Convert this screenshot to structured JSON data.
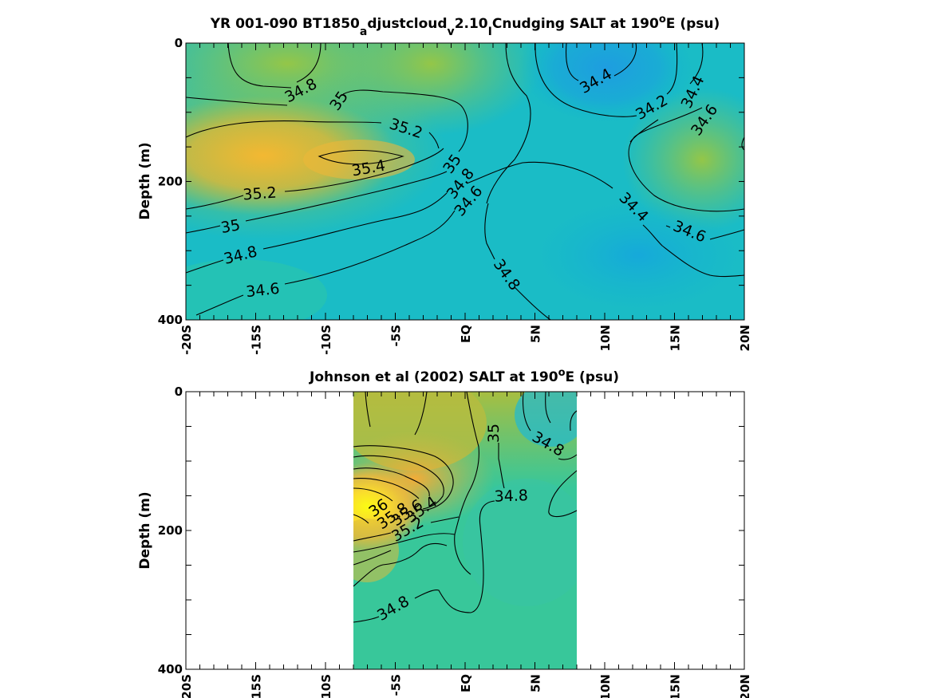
{
  "chart_data": [
    {
      "type": "heatmap",
      "subtype": "contour",
      "title": "YR 001-090 BT1850_adjustcloud_v2.10_ICnudging SALT at 190°E (psu)",
      "title_parts": {
        "main": "YR 001-090 BT1850",
        "sub1": "a",
        "mid1": "djustcloud",
        "sub2": "v",
        "mid2": "2.10",
        "sub3": "I",
        "mid3": "Cnudging SALT at 190",
        "sup": "o",
        "tail": "E (psu)"
      },
      "xlabel": "",
      "ylabel": "Depth (m)",
      "xlim": [
        -20,
        20
      ],
      "ylim": [
        400,
        0
      ],
      "y_reversed": true,
      "x_ticks": [
        -20,
        -15,
        -10,
        -5,
        0,
        5,
        10,
        15,
        20
      ],
      "x_tick_labels": [
        "-20S",
        "-15S",
        "-10S",
        "-5S",
        "EQ",
        "5N",
        "10N",
        "15N",
        "20N"
      ],
      "y_ticks": [
        0,
        200,
        400
      ],
      "y_tick_labels": [
        "0",
        "200",
        "400"
      ],
      "colormap": "parula",
      "color_range": [
        33.5,
        36.0
      ],
      "contour_levels": [
        34.2,
        34.4,
        34.6,
        34.8,
        35.0,
        35.2,
        35.4
      ],
      "data_extent_x": [
        -20,
        20
      ],
      "field": {
        "x": [
          -20,
          -15,
          -10,
          -5,
          0,
          5,
          10,
          15,
          20
        ],
        "y": [
          0,
          100,
          200,
          300,
          400
        ],
        "z": [
          [
            34.9,
            34.8,
            34.7,
            34.9,
            34.95,
            34.2,
            34.05,
            34.4,
            34.8
          ],
          [
            35.2,
            35.35,
            35.3,
            35.25,
            34.9,
            34.35,
            34.3,
            34.55,
            34.9
          ],
          [
            35.1,
            35.25,
            35.2,
            34.9,
            34.55,
            34.45,
            34.35,
            34.5,
            34.8
          ],
          [
            34.75,
            34.75,
            34.65,
            34.55,
            34.45,
            34.4,
            34.3,
            34.3,
            34.4
          ],
          [
            34.5,
            34.55,
            34.45,
            34.4,
            34.4,
            34.35,
            34.25,
            34.25,
            34.3
          ]
        ]
      },
      "contour_labels": [
        "34.8",
        "35",
        "35.2",
        "35.4",
        "35.2",
        "35",
        "34.8",
        "34.6",
        "35",
        "34.8",
        "34.6",
        "34.4",
        "34.2",
        "34.4",
        "34.6",
        "34.8",
        "34.4",
        "34.6"
      ]
    },
    {
      "type": "heatmap",
      "subtype": "contour",
      "title": "Johnson et al (2002) SALT at 190°E (psu)",
      "title_parts": {
        "main": "Johnson et al (2002) SALT at 190",
        "sup": "o",
        "tail": "E (psu)"
      },
      "xlabel": "",
      "ylabel": "Depth (m)",
      "xlim": [
        -20,
        20
      ],
      "ylim": [
        400,
        0
      ],
      "y_reversed": true,
      "x_ticks": [
        -20,
        -15,
        -10,
        -5,
        0,
        5,
        10,
        15,
        20
      ],
      "x_tick_labels": [
        "-20S",
        "-15S",
        "-10S",
        "-5S",
        "EQ",
        "5N",
        "10N",
        "15N",
        "20N"
      ],
      "y_ticks": [
        0,
        200,
        400
      ],
      "y_tick_labels": [
        "0",
        "200",
        "400"
      ],
      "colormap": "parula",
      "color_range": [
        33.5,
        36.0
      ],
      "contour_levels": [
        34.8,
        35.0,
        35.2,
        35.4,
        35.6,
        35.8,
        36.0
      ],
      "data_extent_x": [
        -8,
        8
      ],
      "field": {
        "x": [
          -8,
          -6,
          -4,
          -2,
          0,
          2,
          4,
          6,
          8
        ],
        "y": [
          0,
          100,
          150,
          200,
          300,
          400
        ],
        "z": [
          [
            35.1,
            35.15,
            35.2,
            35.25,
            35.1,
            34.95,
            34.8,
            34.7,
            34.6
          ],
          [
            35.5,
            35.55,
            35.6,
            35.45,
            35.2,
            34.95,
            34.85,
            34.8,
            34.7
          ],
          [
            36.1,
            35.9,
            35.6,
            35.3,
            35.0,
            34.9,
            34.85,
            34.85,
            34.8
          ],
          [
            35.6,
            35.2,
            35.0,
            34.95,
            34.9,
            34.85,
            34.85,
            34.85,
            34.85
          ],
          [
            34.8,
            34.85,
            34.9,
            34.85,
            34.85,
            34.8,
            34.8,
            34.8,
            34.8
          ],
          [
            34.75,
            34.8,
            34.8,
            34.8,
            34.8,
            34.8,
            34.75,
            34.75,
            34.75
          ]
        ]
      },
      "contour_labels": [
        "35",
        "34.8",
        "34.8",
        "36",
        "35.8",
        "35.6",
        "35.4",
        "35.2",
        "34.8"
      ]
    }
  ]
}
